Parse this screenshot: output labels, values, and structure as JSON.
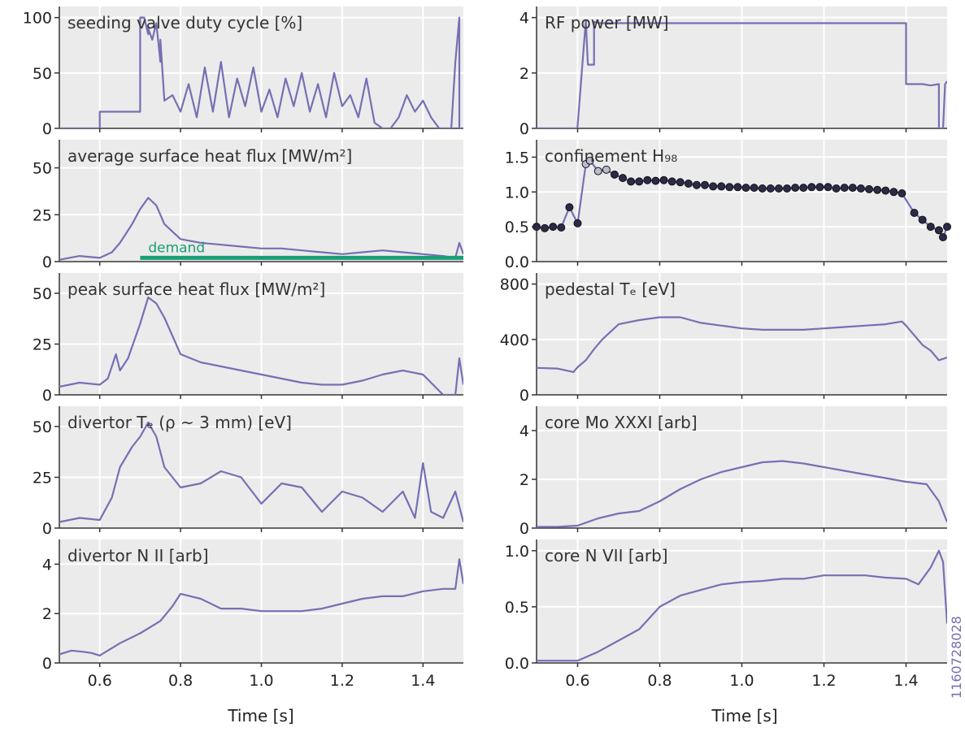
{
  "shot_number": "1160728028",
  "colors": {
    "series": "#7570b3",
    "demand": "#1a9e77",
    "marker_fill": "#2b2b48",
    "panel_bg": "#ebebeb",
    "grid": "#ffffff"
  },
  "chart_data": [
    {
      "type": "line",
      "title": "seeding valve duty cycle [%]",
      "xlabel": "",
      "ylabel": "",
      "xlim": [
        0.5,
        1.5
      ],
      "ylim": [
        0,
        110
      ],
      "yticks": [
        0,
        50,
        100
      ],
      "ytick_labels": [
        "0",
        "50",
        "100"
      ],
      "series": [
        {
          "x": [
            0.5,
            0.6,
            0.6,
            0.7,
            0.7,
            0.71,
            0.72,
            0.72,
            0.73,
            0.74,
            0.75,
            0.75,
            0.76,
            0.78,
            0.8,
            0.82,
            0.84,
            0.86,
            0.88,
            0.9,
            0.92,
            0.94,
            0.96,
            0.98,
            1.0,
            1.02,
            1.04,
            1.06,
            1.08,
            1.1,
            1.12,
            1.14,
            1.16,
            1.18,
            1.2,
            1.22,
            1.24,
            1.26,
            1.28,
            1.3,
            1.32,
            1.34,
            1.36,
            1.38,
            1.4,
            1.42,
            1.44,
            1.46,
            1.47,
            1.48,
            1.49,
            1.49,
            1.5
          ],
          "y": [
            0,
            0,
            15,
            15,
            100,
            100,
            85,
            90,
            80,
            95,
            60,
            80,
            25,
            30,
            15,
            40,
            10,
            55,
            15,
            60,
            10,
            45,
            20,
            55,
            15,
            35,
            10,
            45,
            20,
            50,
            15,
            40,
            10,
            50,
            20,
            30,
            10,
            45,
            5,
            0,
            0,
            10,
            30,
            15,
            25,
            10,
            0,
            0,
            0,
            60,
            100,
            0,
            0
          ]
        }
      ],
      "grid": true
    },
    {
      "type": "line",
      "title": "RF power [MW]",
      "xlabel": "",
      "ylabel": "",
      "xlim": [
        0.5,
        1.5
      ],
      "ylim": [
        0,
        4.4
      ],
      "yticks": [
        0,
        2,
        4
      ],
      "ytick_labels": [
        "0",
        "2",
        "4"
      ],
      "series": [
        {
          "x": [
            0.5,
            0.599,
            0.6,
            0.62,
            0.62,
            0.625,
            0.64,
            0.64,
            0.65,
            0.7,
            0.8,
            0.9,
            1.0,
            1.1,
            1.2,
            1.3,
            1.39,
            1.4,
            1.4,
            1.42,
            1.44,
            1.46,
            1.48,
            1.48,
            1.49,
            1.495,
            1.5
          ],
          "y": [
            0,
            0,
            0.1,
            3.9,
            3.9,
            2.3,
            2.3,
            3.85,
            3.8,
            3.8,
            3.8,
            3.8,
            3.8,
            3.8,
            3.8,
            3.8,
            3.8,
            3.8,
            1.6,
            1.6,
            1.6,
            1.55,
            1.6,
            0,
            0,
            1.6,
            1.7
          ]
        }
      ],
      "grid": true
    },
    {
      "type": "line",
      "title": "average surface heat flux [MW/m²]",
      "xlabel": "",
      "ylabel": "",
      "xlim": [
        0.5,
        1.5
      ],
      "ylim": [
        0,
        65
      ],
      "yticks": [
        0,
        25,
        50
      ],
      "ytick_labels": [
        "0",
        "25",
        "50"
      ],
      "series": [
        {
          "x": [
            0.5,
            0.55,
            0.6,
            0.63,
            0.65,
            0.68,
            0.7,
            0.72,
            0.74,
            0.76,
            0.8,
            0.85,
            0.9,
            0.95,
            1.0,
            1.05,
            1.1,
            1.15,
            1.2,
            1.25,
            1.3,
            1.35,
            1.4,
            1.45,
            1.48,
            1.49,
            1.5
          ],
          "y": [
            1,
            3,
            2,
            5,
            10,
            20,
            28,
            34,
            30,
            20,
            12,
            10,
            9,
            8,
            7,
            7,
            6,
            5,
            4,
            5,
            6,
            5,
            4,
            3,
            2,
            10,
            4
          ]
        },
        {
          "name": "demand",
          "x": [
            0.7,
            1.5
          ],
          "y": [
            2,
            2
          ]
        }
      ],
      "annotations": [
        {
          "text": "demand",
          "x": 0.72,
          "y": 5
        }
      ],
      "grid": true
    },
    {
      "type": "scatter",
      "title": "confinement H₉₈",
      "xlabel": "",
      "ylabel": "",
      "xlim": [
        0.5,
        1.5
      ],
      "ylim": [
        0,
        1.75
      ],
      "yticks": [
        0,
        0.5,
        1.0,
        1.5
      ],
      "ytick_labels": [
        "0.0",
        "0.5",
        "1.0",
        "1.5"
      ],
      "series": [
        {
          "x": [
            0.5,
            0.52,
            0.54,
            0.56,
            0.58,
            0.6,
            0.62,
            0.63,
            0.65,
            0.67,
            0.69,
            0.71,
            0.73,
            0.75,
            0.77,
            0.79,
            0.81,
            0.83,
            0.85,
            0.87,
            0.89,
            0.91,
            0.93,
            0.95,
            0.97,
            0.99,
            1.01,
            1.03,
            1.05,
            1.07,
            1.09,
            1.11,
            1.13,
            1.15,
            1.17,
            1.19,
            1.21,
            1.23,
            1.25,
            1.27,
            1.29,
            1.31,
            1.33,
            1.35,
            1.37,
            1.39,
            1.42,
            1.44,
            1.46,
            1.48,
            1.49,
            1.5
          ],
          "y": [
            0.5,
            0.48,
            0.5,
            0.49,
            0.78,
            0.55,
            1.4,
            1.45,
            1.3,
            1.32,
            1.25,
            1.2,
            1.15,
            1.15,
            1.17,
            1.16,
            1.17,
            1.15,
            1.14,
            1.12,
            1.1,
            1.1,
            1.08,
            1.08,
            1.07,
            1.07,
            1.06,
            1.06,
            1.05,
            1.05,
            1.05,
            1.05,
            1.06,
            1.06,
            1.07,
            1.07,
            1.07,
            1.05,
            1.06,
            1.06,
            1.05,
            1.04,
            1.03,
            1.02,
            1.0,
            0.98,
            0.7,
            0.6,
            0.5,
            0.45,
            0.35,
            0.5
          ]
        }
      ],
      "grid": true
    },
    {
      "type": "line",
      "title": "peak surface heat flux [MW/m²]",
      "xlabel": "",
      "ylabel": "",
      "xlim": [
        0.5,
        1.5
      ],
      "ylim": [
        0,
        60
      ],
      "yticks": [
        0,
        25,
        50
      ],
      "ytick_labels": [
        "0",
        "25",
        "50"
      ],
      "series": [
        {
          "x": [
            0.5,
            0.55,
            0.6,
            0.62,
            0.64,
            0.65,
            0.67,
            0.7,
            0.72,
            0.74,
            0.76,
            0.8,
            0.85,
            0.9,
            0.95,
            1.0,
            1.05,
            1.1,
            1.15,
            1.2,
            1.25,
            1.3,
            1.35,
            1.4,
            1.45,
            1.48,
            1.49,
            1.5
          ],
          "y": [
            4,
            6,
            5,
            8,
            20,
            12,
            18,
            35,
            48,
            45,
            38,
            20,
            16,
            14,
            12,
            10,
            8,
            6,
            5,
            5,
            7,
            10,
            12,
            10,
            0,
            0,
            18,
            5
          ]
        }
      ],
      "grid": true
    },
    {
      "type": "line",
      "title": "pedestal Tₑ [eV]",
      "xlabel": "",
      "ylabel": "",
      "xlim": [
        0.5,
        1.5
      ],
      "ylim": [
        0,
        880
      ],
      "yticks": [
        0,
        400,
        800
      ],
      "ytick_labels": [
        "0",
        "400",
        "800"
      ],
      "series": [
        {
          "x": [
            0.5,
            0.55,
            0.59,
            0.6,
            0.62,
            0.64,
            0.66,
            0.7,
            0.75,
            0.8,
            0.85,
            0.9,
            0.95,
            1.0,
            1.05,
            1.1,
            1.15,
            1.2,
            1.25,
            1.3,
            1.35,
            1.39,
            1.4,
            1.42,
            1.44,
            1.46,
            1.48,
            1.5
          ],
          "y": [
            195,
            190,
            165,
            200,
            250,
            330,
            400,
            510,
            540,
            560,
            560,
            520,
            500,
            480,
            470,
            470,
            470,
            480,
            490,
            500,
            510,
            530,
            500,
            430,
            360,
            320,
            250,
            270
          ]
        }
      ],
      "grid": true
    },
    {
      "type": "line",
      "title": "divertor Tₑ (ρ ~ 3 mm) [eV]",
      "xlabel": "",
      "ylabel": "",
      "xlim": [
        0.5,
        1.5
      ],
      "ylim": [
        0,
        60
      ],
      "yticks": [
        0,
        25,
        50
      ],
      "ytick_labels": [
        "0",
        "25",
        "50"
      ],
      "series": [
        {
          "x": [
            0.5,
            0.55,
            0.6,
            0.63,
            0.65,
            0.68,
            0.7,
            0.72,
            0.74,
            0.76,
            0.8,
            0.85,
            0.9,
            0.95,
            1.0,
            1.05,
            1.1,
            1.15,
            1.2,
            1.25,
            1.3,
            1.35,
            1.38,
            1.4,
            1.42,
            1.45,
            1.48,
            1.5
          ],
          "y": [
            3,
            5,
            4,
            15,
            30,
            40,
            45,
            52,
            45,
            30,
            20,
            22,
            28,
            25,
            12,
            22,
            20,
            8,
            18,
            15,
            8,
            18,
            5,
            32,
            8,
            5,
            18,
            3
          ]
        }
      ],
      "grid": true
    },
    {
      "type": "line",
      "title": "core Mo XXXI [arb]",
      "xlabel": "",
      "ylabel": "",
      "xlim": [
        0.5,
        1.5
      ],
      "ylim": [
        0,
        5
      ],
      "yticks": [
        0,
        2,
        4
      ],
      "ytick_labels": [
        "0",
        "2",
        "4"
      ],
      "series": [
        {
          "x": [
            0.5,
            0.55,
            0.6,
            0.65,
            0.7,
            0.75,
            0.8,
            0.85,
            0.9,
            0.95,
            1.0,
            1.05,
            1.1,
            1.15,
            1.2,
            1.25,
            1.3,
            1.35,
            1.4,
            1.45,
            1.48,
            1.5
          ],
          "y": [
            0.05,
            0.05,
            0.1,
            0.4,
            0.6,
            0.7,
            1.1,
            1.6,
            2.0,
            2.3,
            2.5,
            2.7,
            2.75,
            2.65,
            2.5,
            2.35,
            2.2,
            2.05,
            1.9,
            1.8,
            1.1,
            0.25
          ]
        }
      ],
      "grid": true
    },
    {
      "type": "line",
      "title": "divertor N II [arb]",
      "xlabel": "",
      "ylabel": "",
      "xlim": [
        0.5,
        1.5
      ],
      "ylim": [
        0,
        5
      ],
      "yticks": [
        0,
        2,
        4
      ],
      "ytick_labels": [
        "0",
        "2",
        "4"
      ],
      "series": [
        {
          "x": [
            0.5,
            0.53,
            0.56,
            0.58,
            0.6,
            0.62,
            0.65,
            0.7,
            0.75,
            0.78,
            0.8,
            0.85,
            0.9,
            0.95,
            1.0,
            1.05,
            1.1,
            1.15,
            1.2,
            1.25,
            1.3,
            1.35,
            1.4,
            1.45,
            1.48,
            1.49,
            1.5
          ],
          "y": [
            0.35,
            0.5,
            0.45,
            0.4,
            0.3,
            0.5,
            0.8,
            1.2,
            1.7,
            2.3,
            2.8,
            2.6,
            2.2,
            2.2,
            2.1,
            2.1,
            2.1,
            2.2,
            2.4,
            2.6,
            2.7,
            2.7,
            2.9,
            3.0,
            3.0,
            4.2,
            3.2
          ]
        }
      ],
      "grid": true
    },
    {
      "type": "line",
      "title": "core N VII [arb]",
      "xlabel": "",
      "ylabel": "",
      "xlim": [
        0.5,
        1.5
      ],
      "ylim": [
        0,
        1.1
      ],
      "yticks": [
        0,
        0.5,
        1.0
      ],
      "ytick_labels": [
        "0.0",
        "0.5",
        "1.0"
      ],
      "series": [
        {
          "x": [
            0.5,
            0.55,
            0.6,
            0.65,
            0.7,
            0.75,
            0.8,
            0.85,
            0.9,
            0.95,
            1.0,
            1.05,
            1.1,
            1.15,
            1.2,
            1.25,
            1.3,
            1.35,
            1.4,
            1.43,
            1.46,
            1.48,
            1.49,
            1.5
          ],
          "y": [
            0.02,
            0.02,
            0.02,
            0.1,
            0.2,
            0.3,
            0.5,
            0.6,
            0.65,
            0.7,
            0.72,
            0.73,
            0.75,
            0.75,
            0.78,
            0.78,
            0.78,
            0.76,
            0.75,
            0.7,
            0.85,
            1.0,
            0.9,
            0.35
          ]
        }
      ],
      "grid": true
    }
  ],
  "x_axis": {
    "ticks": [
      0.6,
      0.8,
      1.0,
      1.2,
      1.4
    ],
    "tick_labels": [
      "0.6",
      "0.8",
      "1.0",
      "1.2",
      "1.4"
    ],
    "label": "Time [s]"
  }
}
